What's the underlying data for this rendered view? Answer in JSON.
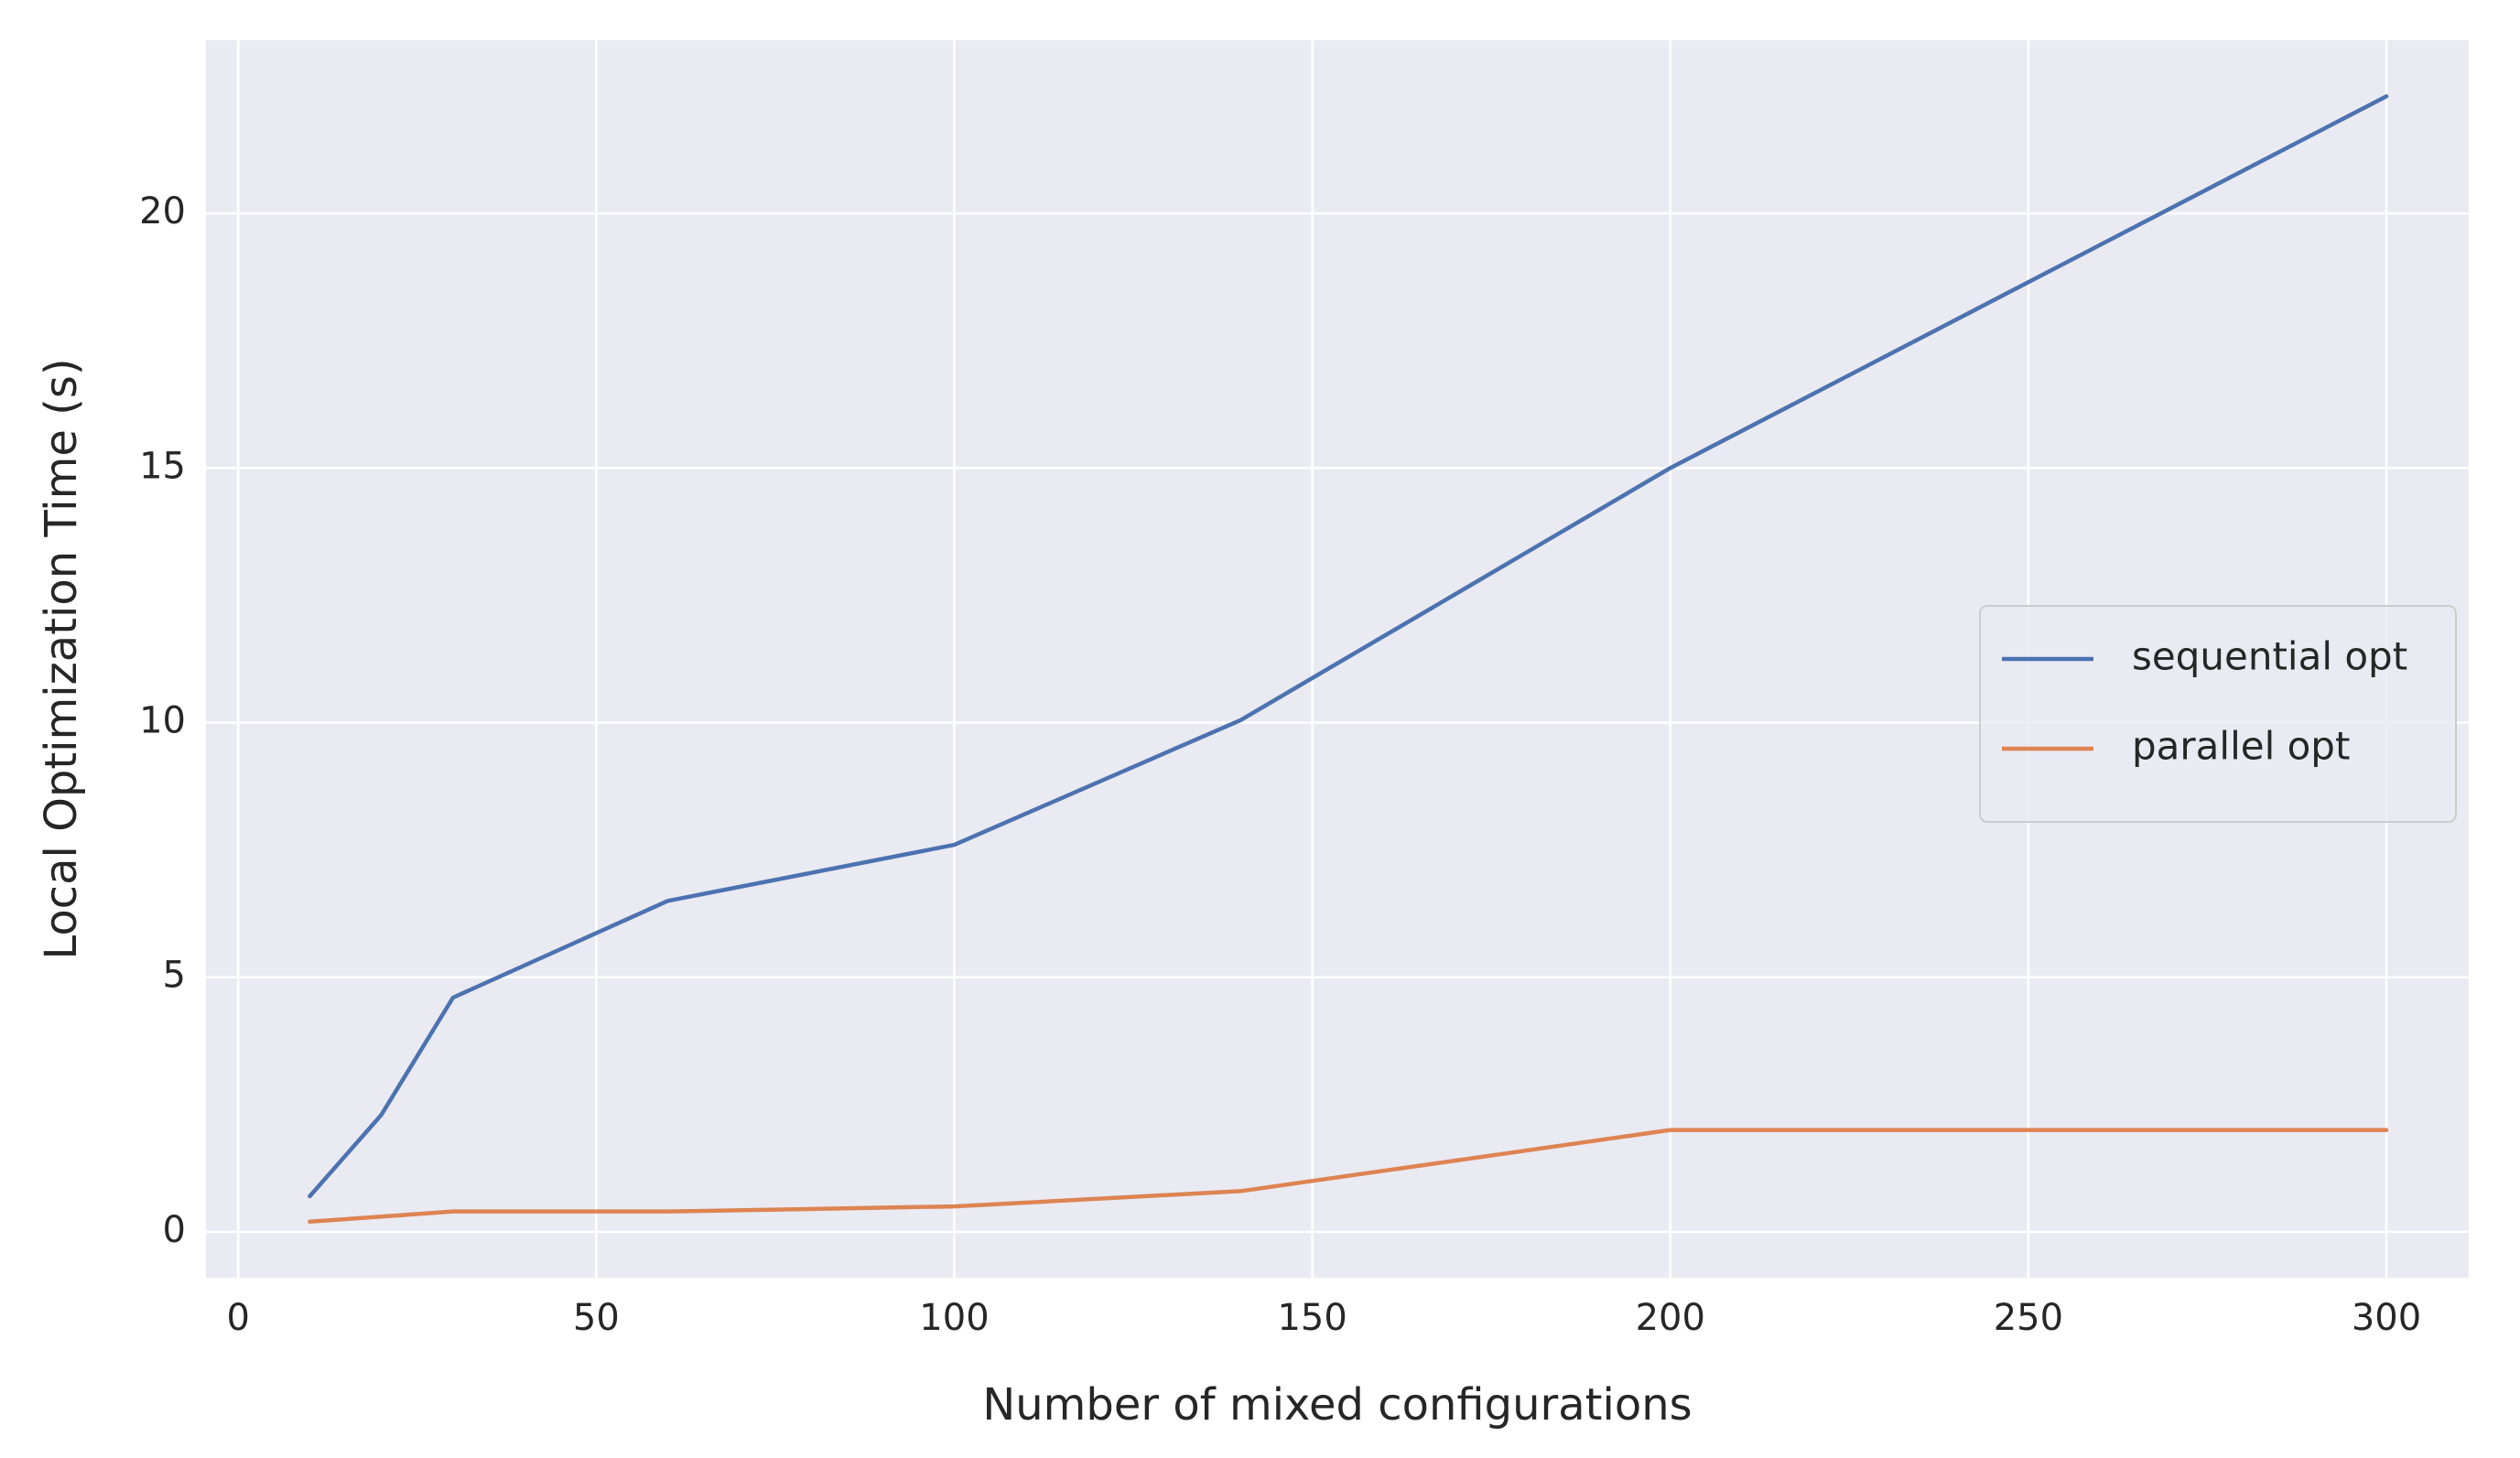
{
  "chart_data": {
    "type": "line",
    "xlabel": "Number of mixed configurations",
    "ylabel": "Local Optimization Time (s)",
    "x": [
      10,
      20,
      30,
      60,
      100,
      140,
      200,
      300
    ],
    "series": [
      {
        "name": "sequential opt",
        "color": "#4c72b0",
        "values": [
          0.7,
          2.3,
          4.6,
          6.5,
          7.6,
          10.05,
          15.0,
          22.3
        ]
      },
      {
        "name": "parallel opt",
        "color": "#dd8452",
        "values": [
          0.2,
          0.3,
          0.4,
          0.4,
          0.5,
          0.8,
          2.0,
          2.0
        ]
      }
    ],
    "xlim": [
      -4.5,
      311.5
    ],
    "xticks": [
      0,
      50,
      100,
      150,
      200,
      250,
      300
    ],
    "ylim": [
      -0.9,
      23.4
    ],
    "yticks": [
      0,
      5,
      10,
      15,
      20
    ],
    "grid": true,
    "legend": "center right"
  }
}
